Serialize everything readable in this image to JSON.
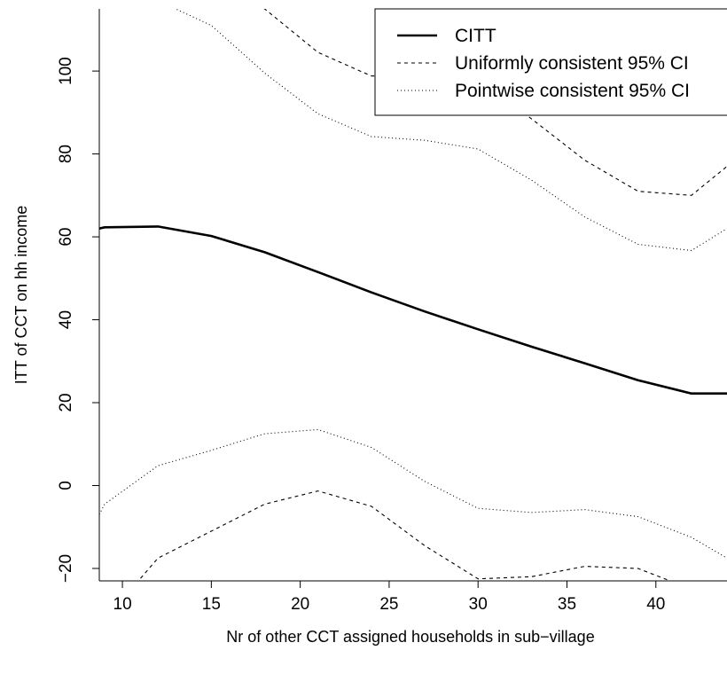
{
  "chart_data": {
    "type": "line",
    "title": "",
    "xlabel": "Nr of other CCT assigned households in sub−village",
    "ylabel": "ITT of CCT on hh income",
    "xlim": [
      8.7,
      44
    ],
    "ylim": [
      -23,
      115
    ],
    "x_ticks": [
      10,
      15,
      20,
      25,
      30,
      35,
      40
    ],
    "x_tick_labels": [
      "10",
      "15",
      "20",
      "25",
      "30",
      "35",
      "40"
    ],
    "y_ticks": [
      -20,
      0,
      20,
      40,
      60,
      80,
      100
    ],
    "y_tick_labels": [
      "−20",
      "0",
      "20",
      "40",
      "60",
      "80",
      "100"
    ],
    "grid": false,
    "legend_position": "top-right",
    "series": [
      {
        "name": "CITT",
        "style": "solid",
        "x": [
          8.7,
          9,
          12,
          15,
          18,
          21,
          24,
          27,
          30,
          33,
          36,
          39,
          42,
          44
        ],
        "y": [
          62,
          62.3,
          62.5,
          60.2,
          56.3,
          51.5,
          46.6,
          42,
          37.7,
          33.5,
          29.5,
          25.4,
          22.2,
          22.2
        ]
      },
      {
        "name": "Uniformly consistent 95% CI",
        "style": "dashed",
        "x": [
          16.5,
          18,
          21,
          24,
          27,
          30,
          33,
          36,
          39,
          42,
          44
        ],
        "y": [
          118,
          115,
          104.5,
          98.8,
          99,
          97.7,
          88.5,
          78.5,
          71,
          70,
          77
        ]
      },
      {
        "name": "Uniformly consistent 95% CI (lower)",
        "style": "dashed",
        "x": [
          10.5,
          12,
          15,
          18,
          21,
          24,
          27,
          30,
          33,
          36,
          39,
          42
        ],
        "y": [
          -25,
          -17.5,
          -11,
          -4.5,
          -1.3,
          -5,
          -14.5,
          -22.5,
          -22,
          -19.5,
          -20,
          -25
        ]
      },
      {
        "name": "Pointwise consistent 95% CI",
        "style": "dotted",
        "x": [
          11,
          12,
          15,
          18,
          21,
          24,
          27,
          30,
          33,
          36,
          39,
          42,
          44
        ],
        "y": [
          120,
          117,
          111,
          99.5,
          89.7,
          84.2,
          83.3,
          81.2,
          73.7,
          64.8,
          58.2,
          56.7,
          62
        ]
      },
      {
        "name": "Pointwise consistent 95% CI (lower)",
        "style": "dotted",
        "x": [
          8.7,
          9,
          12,
          15,
          18,
          21,
          24,
          27,
          30,
          33,
          36,
          39,
          42,
          44
        ],
        "y": [
          -7,
          -4.5,
          4.8,
          8.5,
          12.5,
          13.5,
          9.2,
          1,
          -5.5,
          -6.5,
          -5.8,
          -7.5,
          -12.5,
          -17.5
        ]
      }
    ],
    "legend": [
      {
        "label": "CITT",
        "style": "solid"
      },
      {
        "label": "Uniformly consistent 95% CI",
        "style": "dashed"
      },
      {
        "label": "Pointwise consistent 95% CI",
        "style": "dotted"
      }
    ]
  }
}
